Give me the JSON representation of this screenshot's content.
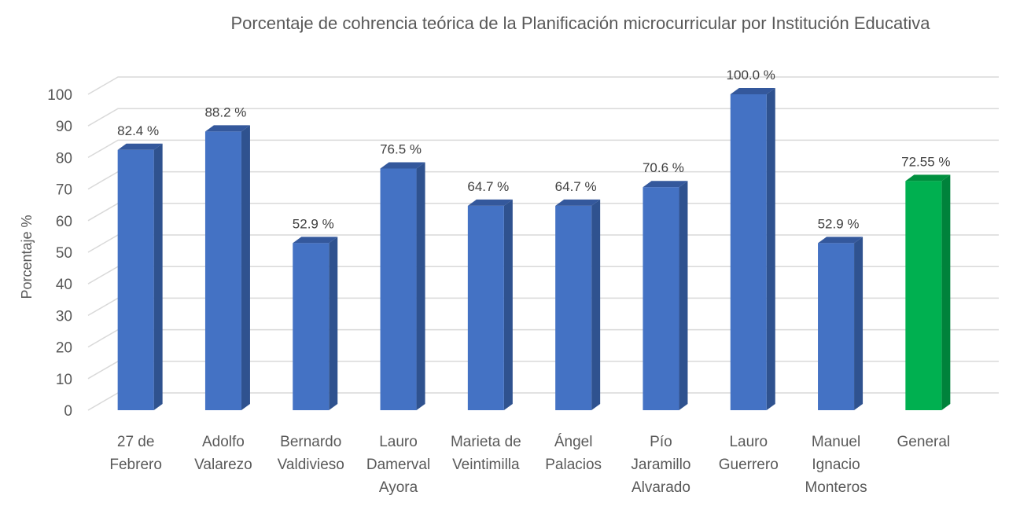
{
  "chart_data": {
    "type": "bar",
    "title": "Porcentaje de cohrencia teórica de la Planificación microcurricular por  Institución Educativa",
    "xlabel": "",
    "ylabel": "Porcentaje %",
    "ylim": [
      0,
      100
    ],
    "yticks": [
      0,
      10,
      20,
      30,
      40,
      50,
      60,
      70,
      80,
      90,
      100
    ],
    "grid": true,
    "categories": [
      [
        "27 de",
        "Febrero"
      ],
      [
        "Adolfo",
        "Valarezo"
      ],
      [
        "Bernardo",
        "Valdivieso"
      ],
      [
        "Lauro",
        "Damerval",
        "Ayora"
      ],
      [
        "Marieta de",
        "Veintimilla"
      ],
      [
        "Ángel",
        "Palacios"
      ],
      [
        "Pío",
        "Jaramillo",
        "Alvarado"
      ],
      [
        "Lauro",
        "Guerrero"
      ],
      [
        "Manuel",
        "Ignacio",
        "Monteros"
      ],
      [
        "General"
      ]
    ],
    "values": [
      82.4,
      88.2,
      52.9,
      76.5,
      64.7,
      64.7,
      70.6,
      100.0,
      52.9,
      72.55
    ],
    "data_labels": [
      "82.4 %",
      "88.2 %",
      "52.9 %",
      "76.5 %",
      "64.7 %",
      "64.7 %",
      "70.6 %",
      "100.0 %",
      "52.9 %",
      "72.55 %"
    ],
    "bar_colors": [
      "#4472c4",
      "#4472c4",
      "#4472c4",
      "#4472c4",
      "#4472c4",
      "#4472c4",
      "#4472c4",
      "#4472c4",
      "#4472c4",
      "#00b050"
    ],
    "bar_side_colors": [
      "#2f528f",
      "#2f528f",
      "#2f528f",
      "#2f528f",
      "#2f528f",
      "#2f528f",
      "#2f528f",
      "#2f528f",
      "#2f528f",
      "#00823b"
    ],
    "bar_top_colors": [
      "#34589c",
      "#34589c",
      "#34589c",
      "#34589c",
      "#34589c",
      "#34589c",
      "#34589c",
      "#34589c",
      "#34589c",
      "#00903f"
    ]
  }
}
